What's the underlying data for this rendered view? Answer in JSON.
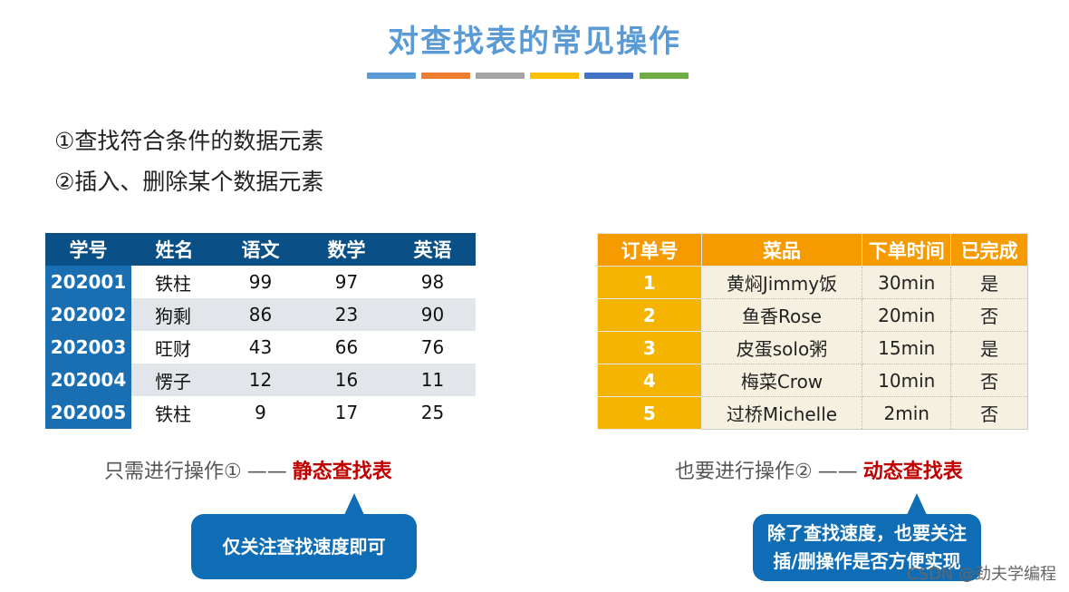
{
  "title": "对查找表的常见操作",
  "colors": {
    "title": "#5b9bd5",
    "bars": [
      "#5b9bd5",
      "#ed7d31",
      "#a5a5a5",
      "#ffc000",
      "#4472c4",
      "#70ad47"
    ],
    "student_header": "#0a4f85",
    "student_id": "#1a6fb3",
    "order_header": "#f59b00",
    "order_id": "#f4b400",
    "highlight_red": "#c00000",
    "bubble": "#0e6db5"
  },
  "operations": [
    "①查找符合条件的数据元素",
    "②插入、删除某个数据元素"
  ],
  "student_table": {
    "headers": [
      "学号",
      "姓名",
      "语文",
      "数学",
      "英语"
    ],
    "rows": [
      [
        "202001",
        "铁柱",
        "99",
        "97",
        "98"
      ],
      [
        "202002",
        "狗剩",
        "86",
        "23",
        "90"
      ],
      [
        "202003",
        "旺财",
        "43",
        "66",
        "76"
      ],
      [
        "202004",
        "愣子",
        "12",
        "16",
        "11"
      ],
      [
        "202005",
        "铁柱",
        "9",
        "17",
        "25"
      ]
    ]
  },
  "order_table": {
    "headers": [
      "订单号",
      "菜品",
      "下单时间",
      "已完成"
    ],
    "rows": [
      [
        "1",
        "黄焖Jimmy饭",
        "30min",
        "是"
      ],
      [
        "2",
        "鱼香Rose",
        "20min",
        "否"
      ],
      [
        "3",
        "皮蛋solo粥",
        "15min",
        "是"
      ],
      [
        "4",
        "梅菜Crow",
        "10min",
        "否"
      ],
      [
        "5",
        "过桥Michelle",
        "2min",
        "否"
      ]
    ]
  },
  "static_caption": {
    "prefix": "只需进行操作①",
    "dash": "——",
    "highlight": "静态查找表"
  },
  "dynamic_caption": {
    "prefix": "也要进行操作②",
    "dash": "——",
    "highlight": "动态查找表"
  },
  "static_bubble": "仅关注查找速度即可",
  "dynamic_bubble": [
    "除了查找速度，也要关注",
    "插/删操作是否方便实现"
  ],
  "watermark": "CSDN @劲夫学编程"
}
